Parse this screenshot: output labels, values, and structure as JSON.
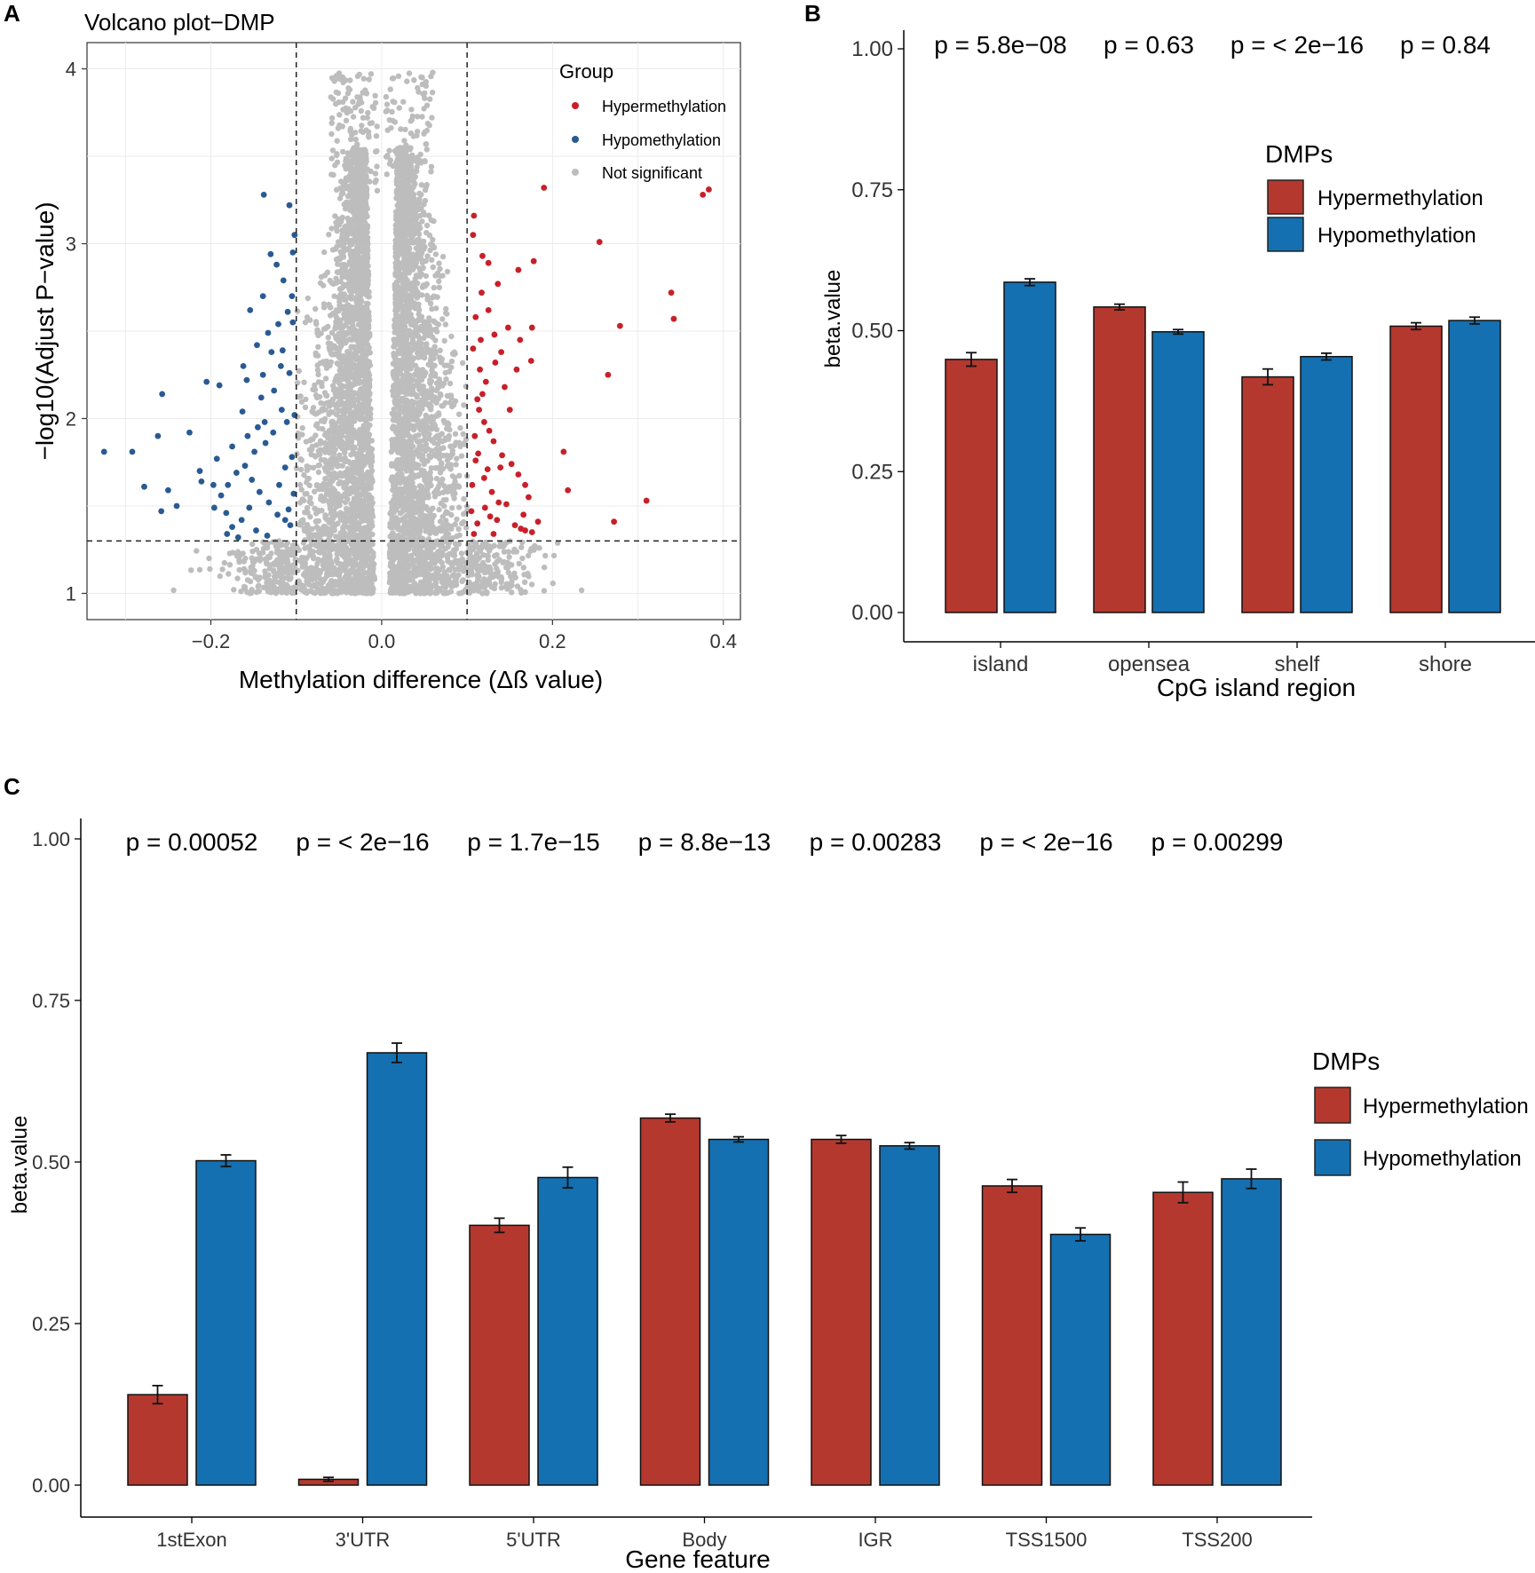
{
  "colors": {
    "hyper": "#B5382E",
    "hypo": "#1470B0",
    "hyper_dot": "#C8202A",
    "hypo_dot": "#2A5A92",
    "ns_dot": "#BDBDBD"
  },
  "chart_data": [
    {
      "panel": "A",
      "type": "scatter",
      "title": "Volcano plot−DMP",
      "xlabel": "Methylation difference (Δß value)",
      "ylabel": "−log10(Adjust P−value)",
      "xlim": [
        -0.345,
        0.42
      ],
      "ylim": [
        0.85,
        4.15
      ],
      "xticks": [
        -0.2,
        0.0,
        0.2,
        0.4
      ],
      "xtick_labels": [
        "−0.2",
        "0.0",
        "0.2",
        "0.4"
      ],
      "yticks": [
        1,
        2,
        3,
        4
      ],
      "ytick_labels": [
        "1",
        "2",
        "3",
        "4"
      ],
      "thresholds": {
        "x": [
          -0.1,
          0.1
        ],
        "y": 1.3
      },
      "legend": {
        "title": "Group",
        "entries": [
          "Hypermethylation",
          "Hypomethylation",
          "Not significant"
        ]
      },
      "series": [
        {
          "name": "Hypermethylation",
          "points": [
            [
              0.376,
              3.28
            ],
            [
              0.383,
              3.31
            ],
            [
              0.19,
              3.32
            ],
            [
              0.255,
              3.01
            ],
            [
              0.339,
              2.72
            ],
            [
              0.342,
              2.57
            ],
            [
              0.279,
              2.53
            ],
            [
              0.265,
              2.25
            ],
            [
              0.31,
              1.53
            ],
            [
              0.272,
              1.41
            ],
            [
              0.213,
              1.81
            ],
            [
              0.218,
              1.59
            ],
            [
              0.178,
              2.9
            ],
            [
              0.16,
              2.85
            ],
            [
              0.125,
              2.89
            ],
            [
              0.118,
              2.93
            ],
            [
              0.176,
              2.52
            ],
            [
              0.162,
              2.45
            ],
            [
              0.148,
              2.52
            ],
            [
              0.132,
              2.48
            ],
            [
              0.14,
              2.38
            ],
            [
              0.158,
              2.28
            ],
            [
              0.175,
              2.33
            ],
            [
              0.115,
              2.28
            ],
            [
              0.122,
              2.21
            ],
            [
              0.118,
              2.14
            ],
            [
              0.114,
              2.05
            ],
            [
              0.12,
              1.98
            ],
            [
              0.126,
              1.93
            ],
            [
              0.131,
              1.87
            ],
            [
              0.141,
              1.79
            ],
            [
              0.152,
              1.74
            ],
            [
              0.139,
              1.72
            ],
            [
              0.16,
              1.68
            ],
            [
              0.168,
              1.62
            ],
            [
              0.172,
              1.55
            ],
            [
              0.146,
              1.51
            ],
            [
              0.121,
              1.49
            ],
            [
              0.127,
              1.44
            ],
            [
              0.135,
              1.42
            ],
            [
              0.112,
              1.4
            ],
            [
              0.156,
              1.39
            ],
            [
              0.163,
              1.37
            ],
            [
              0.176,
              1.35
            ],
            [
              0.183,
              1.41
            ],
            [
              0.168,
              1.36
            ],
            [
              0.131,
              1.34
            ],
            [
              0.108,
              1.34
            ],
            [
              0.106,
              1.62
            ],
            [
              0.11,
              1.76
            ],
            [
              0.109,
              1.9
            ],
            [
              0.112,
              2.11
            ],
            [
              0.107,
              2.4
            ],
            [
              0.11,
              2.58
            ],
            [
              0.108,
              3.16
            ],
            [
              0.107,
              3.05
            ],
            [
              0.117,
              2.72
            ],
            [
              0.125,
              2.62
            ],
            [
              0.133,
              2.32
            ],
            [
              0.144,
              2.18
            ],
            [
              0.15,
              2.05
            ],
            [
              0.12,
              1.66
            ],
            [
              0.129,
              1.58
            ],
            [
              0.137,
              1.52
            ],
            [
              0.105,
              1.47
            ],
            [
              0.113,
              1.8
            ],
            [
              0.116,
              2.45
            ],
            [
              0.136,
              2.77
            ],
            [
              0.124,
              1.71
            ],
            [
              0.166,
              1.45
            ]
          ]
        },
        {
          "name": "Hypomethylation",
          "points": [
            [
              -0.325,
              1.81
            ],
            [
              -0.292,
              1.81
            ],
            [
              -0.278,
              1.61
            ],
            [
              -0.262,
              1.9
            ],
            [
              -0.257,
              2.14
            ],
            [
              -0.24,
              1.5
            ],
            [
              -0.25,
              1.59
            ],
            [
              -0.258,
              1.47
            ],
            [
              -0.225,
              1.92
            ],
            [
              -0.213,
              1.7
            ],
            [
              -0.211,
              1.64
            ],
            [
              -0.193,
              1.77
            ],
            [
              -0.175,
              1.84
            ],
            [
              -0.18,
              1.62
            ],
            [
              -0.197,
              1.62
            ],
            [
              -0.205,
              2.21
            ],
            [
              -0.19,
              2.19
            ],
            [
              -0.163,
              2.04
            ],
            [
              -0.138,
              3.28
            ],
            [
              -0.108,
              3.22
            ],
            [
              -0.13,
              2.94
            ],
            [
              -0.123,
              2.88
            ],
            [
              -0.115,
              2.79
            ],
            [
              -0.105,
              2.7
            ],
            [
              -0.11,
              2.61
            ],
            [
              -0.121,
              2.54
            ],
            [
              -0.133,
              2.49
            ],
            [
              -0.129,
              2.38
            ],
            [
              -0.146,
              2.42
            ],
            [
              -0.158,
              2.22
            ],
            [
              -0.141,
              2.12
            ],
            [
              -0.117,
              2.05
            ],
            [
              -0.111,
              1.98
            ],
            [
              -0.127,
              1.92
            ],
            [
              -0.136,
              1.86
            ],
            [
              -0.149,
              1.81
            ],
            [
              -0.16,
              1.73
            ],
            [
              -0.17,
              1.69
            ],
            [
              -0.152,
              1.65
            ],
            [
              -0.143,
              1.58
            ],
            [
              -0.132,
              1.52
            ],
            [
              -0.122,
              1.45
            ],
            [
              -0.113,
              1.42
            ],
            [
              -0.107,
              1.39
            ],
            [
              -0.155,
              1.49
            ],
            [
              -0.164,
              1.42
            ],
            [
              -0.175,
              1.38
            ],
            [
              -0.181,
              1.34
            ],
            [
              -0.168,
              1.32
            ],
            [
              -0.147,
              1.36
            ],
            [
              -0.134,
              1.33
            ],
            [
              -0.12,
              1.62
            ],
            [
              -0.105,
              1.78
            ],
            [
              -0.108,
              2.26
            ],
            [
              -0.104,
              2.95
            ],
            [
              -0.102,
              3.05
            ],
            [
              -0.118,
              2.3
            ],
            [
              -0.139,
              2.25
            ],
            [
              -0.126,
              2.16
            ],
            [
              -0.113,
              1.72
            ],
            [
              -0.103,
              1.57
            ],
            [
              -0.188,
              1.56
            ],
            [
              -0.182,
              1.46
            ],
            [
              -0.145,
              1.95
            ],
            [
              -0.157,
              1.9
            ],
            [
              -0.162,
              2.3
            ],
            [
              -0.154,
              2.62
            ],
            [
              -0.139,
              2.7
            ],
            [
              -0.102,
              2.02
            ],
            [
              -0.109,
              1.48
            ],
            [
              -0.196,
              1.49
            ],
            [
              -0.137,
              1.98
            ],
            [
              -0.116,
              2.39
            ],
            [
              -0.104,
              2.55
            ]
          ]
        },
        {
          "name": "Not significant",
          "points": [],
          "note": "dense cloud of non-significant CpGs centered at Δβ≈0, −log10 P from 1.0 to ~4.0; sparse points beyond thresholds below the 1.3 line"
        }
      ]
    },
    {
      "panel": "B",
      "type": "bar",
      "title": "",
      "xlabel": "CpG island region",
      "ylabel": "beta.value",
      "ylim": [
        0,
        1
      ],
      "yticks": [
        0,
        0.25,
        0.5,
        0.75,
        1.0
      ],
      "ytick_labels": [
        "0.00",
        "0.25",
        "0.50",
        "0.75",
        "1.00"
      ],
      "categories": [
        "island",
        "opensea",
        "shelf",
        "shore"
      ],
      "series": [
        {
          "name": "Hypermethylation",
          "values": [
            0.449,
            0.542,
            0.418,
            0.508
          ],
          "errors": [
            0.012,
            0.005,
            0.014,
            0.006
          ]
        },
        {
          "name": "Hypomethylation",
          "values": [
            0.586,
            0.498,
            0.454,
            0.518
          ],
          "errors": [
            0.006,
            0.004,
            0.006,
            0.006
          ]
        }
      ],
      "pvalues": [
        "p = 5.8e−08",
        "p = 0.63",
        "p = < 2e−16",
        "p = 0.84"
      ],
      "legend": {
        "title": "DMPs",
        "entries": [
          "Hypermethylation",
          "Hypomethylation"
        ]
      }
    },
    {
      "panel": "C",
      "type": "bar",
      "title": "",
      "xlabel": "Gene feature",
      "ylabel": "beta.value",
      "ylim": [
        0,
        1
      ],
      "yticks": [
        0,
        0.25,
        0.5,
        0.75,
        1.0
      ],
      "ytick_labels": [
        "0.00",
        "0.25",
        "0.50",
        "0.75",
        "1.00"
      ],
      "categories": [
        "1stExon",
        "3'UTR",
        "5'UTR",
        "Body",
        "IGR",
        "TSS1500",
        "TSS200"
      ],
      "series": [
        {
          "name": "Hypermethylation",
          "values": [
            0.14,
            0.009,
            0.402,
            0.568,
            0.535,
            0.463,
            0.453
          ],
          "errors": [
            0.014,
            0.003,
            0.011,
            0.006,
            0.006,
            0.01,
            0.016
          ]
        },
        {
          "name": "Hypomethylation",
          "values": [
            0.502,
            0.669,
            0.476,
            0.535,
            0.525,
            0.388,
            0.474
          ],
          "errors": [
            0.009,
            0.015,
            0.016,
            0.004,
            0.005,
            0.01,
            0.015
          ]
        }
      ],
      "pvalues": [
        "p = 0.00052",
        "p = < 2e−16",
        "p = 1.7e−15",
        "p = 8.8e−13",
        "p = 0.00283",
        "p = < 2e−16",
        "p = 0.00299"
      ],
      "legend": {
        "title": "DMPs",
        "entries": [
          "Hypermethylation",
          "Hypomethylation"
        ]
      }
    }
  ],
  "panel_letters": [
    "A",
    "B",
    "C"
  ]
}
